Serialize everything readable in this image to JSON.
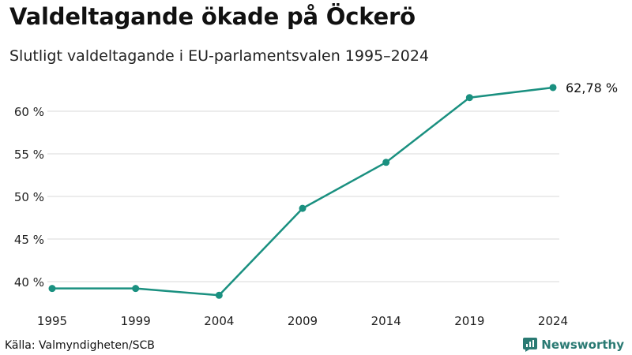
{
  "title": "Valdeltagande ökade på Öckerö",
  "subtitle": "Slutligt valdeltagande i EU-parlamentsvalen 1995–2024",
  "source": "Källa: Valmyndigheten/SCB",
  "brand": "Newsworthy",
  "colors": {
    "line": "#1a9080",
    "grid": "#d9d9d9",
    "brand": "#2a7a73"
  },
  "chart_data": {
    "type": "line",
    "title": "Valdeltagande ökade på Öckerö",
    "subtitle": "Slutligt valdeltagande i EU-parlamentsvalen 1995–2024",
    "xlabel": "",
    "ylabel": "",
    "x": [
      "1995",
      "1999",
      "2004",
      "2009",
      "2014",
      "2019",
      "2024"
    ],
    "series": [
      {
        "name": "Valdeltagande",
        "values": [
          39.2,
          39.2,
          38.4,
          48.6,
          54.0,
          61.6,
          62.78
        ]
      }
    ],
    "yticks": [
      40,
      45,
      50,
      55,
      60
    ],
    "ytick_labels": [
      "40 %",
      "45 %",
      "50 %",
      "55 %",
      "60 %"
    ],
    "ylim": [
      37.5,
      63.0
    ],
    "end_label": "62,78 %",
    "grid": true
  }
}
